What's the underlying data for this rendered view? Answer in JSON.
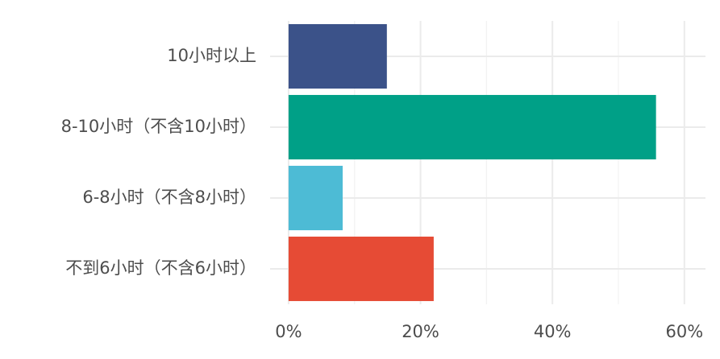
{
  "chart_data": {
    "type": "bar",
    "orientation": "horizontal",
    "categories": [
      "10小时以上",
      "8-10小时（不含10小时）",
      "6-8小时（不含8小时）",
      "不到6小时（不含6小时）"
    ],
    "values": [
      14.9,
      55.7,
      8.2,
      22.0
    ],
    "colors": [
      "#3b5289",
      "#00a087",
      "#4dbbd5",
      "#e64b35"
    ],
    "xlim": [
      -2.8,
      63.2
    ],
    "xticks": [
      {
        "value": 0,
        "label": "0%"
      },
      {
        "value": 20,
        "label": "20%"
      },
      {
        "value": 40,
        "label": "40%"
      },
      {
        "value": 60,
        "label": "60%"
      }
    ],
    "minor_xticks": [
      10,
      30,
      50
    ],
    "grid": true
  }
}
